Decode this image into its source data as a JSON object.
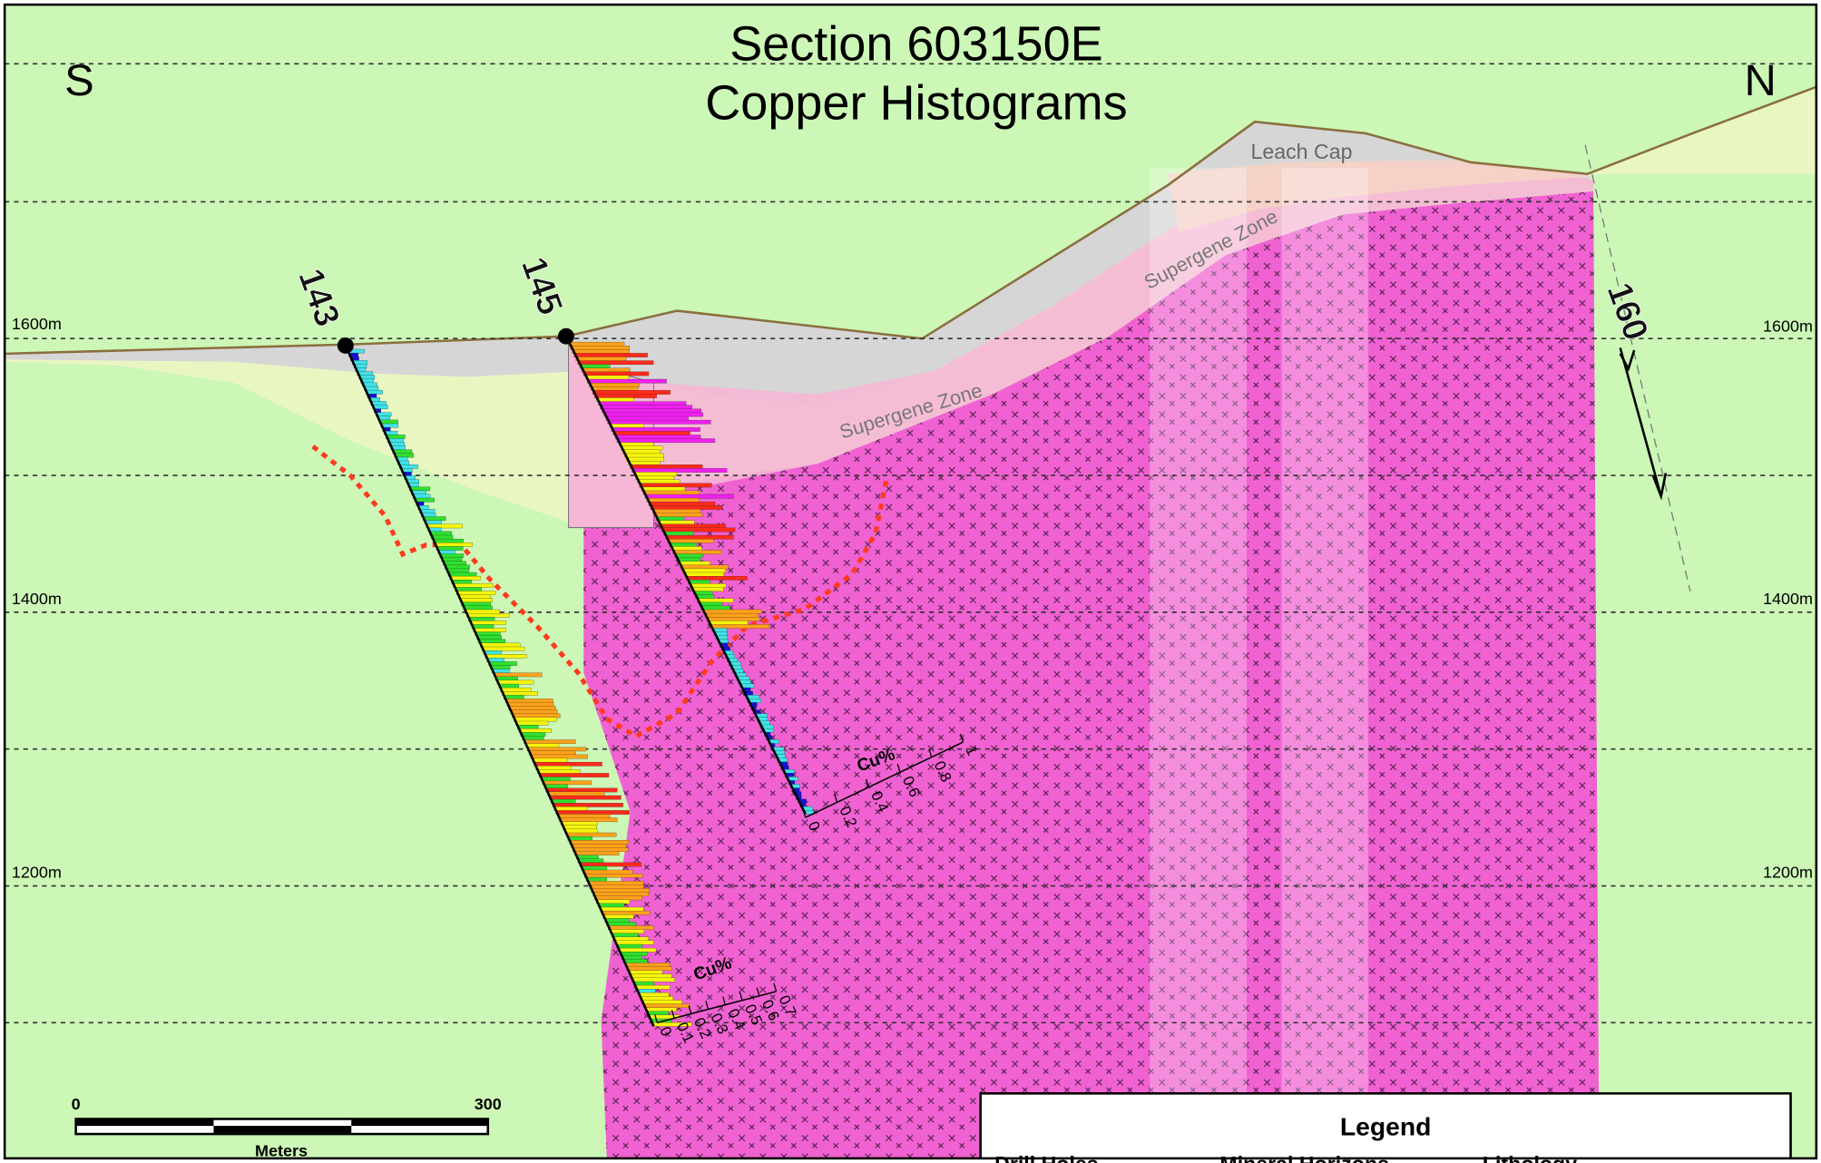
{
  "header": {
    "title": "Section 603150E",
    "subtitle": "Copper Histograms"
  },
  "directions": {
    "south": "S",
    "north": "N"
  },
  "elevations": {
    "left": [
      "1600m",
      "1400m",
      "1200m"
    ],
    "right": [
      "1600m",
      "1400m",
      "1200m"
    ]
  },
  "drill_holes": [
    {
      "label": "143"
    },
    {
      "label": "145"
    },
    {
      "label": "160"
    }
  ],
  "zones": {
    "leach_cap": "Leach Cap",
    "supergene": [
      "Supergene Zone",
      "Supergene Zone"
    ]
  },
  "histogram_scales": [
    {
      "title": "Cu%",
      "ticks": [
        "0",
        "0.1",
        "0.2",
        "0.3",
        "0.4",
        "0.5",
        "0.6",
        "0.7"
      ]
    },
    {
      "title": "Cu%",
      "ticks": [
        "0",
        "0.2",
        "0.4",
        "0.6",
        "0.8",
        "1"
      ]
    }
  ],
  "scale_bar": {
    "ticks": [
      "0",
      "300"
    ],
    "unit": "Meters"
  },
  "legend": {
    "title": "Legend",
    "headings": [
      "Drill Holes",
      "Mineral Horizons",
      "Lithology"
    ]
  }
}
